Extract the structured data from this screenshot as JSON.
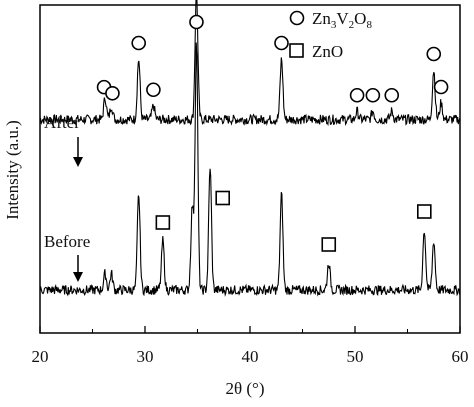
{
  "chart_data": {
    "type": "line",
    "xlabel": "2θ (°)",
    "ylabel": "Intensity (a.u.)",
    "xlim": [
      20,
      60
    ],
    "xticks": [
      20,
      30,
      40,
      50,
      60
    ],
    "grid": false,
    "legend_position": "top-right",
    "legend": [
      {
        "marker": "circle",
        "name": "Zn3V2O8"
      },
      {
        "marker": "square",
        "name": "ZnO"
      }
    ],
    "series": [
      {
        "name": "After",
        "baseline": 0.62,
        "peaks": [
          {
            "x": 26.2,
            "h": 0.08
          },
          {
            "x": 26.8,
            "h": 0.05
          },
          {
            "x": 29.4,
            "h": 0.22
          },
          {
            "x": 30.8,
            "h": 0.05
          },
          {
            "x": 34.9,
            "h": 0.47
          },
          {
            "x": 43.0,
            "h": 0.22
          },
          {
            "x": 50.2,
            "h": 0.03
          },
          {
            "x": 51.7,
            "h": 0.03
          },
          {
            "x": 53.5,
            "h": 0.03
          },
          {
            "x": 57.5,
            "h": 0.18
          },
          {
            "x": 58.2,
            "h": 0.06
          }
        ]
      },
      {
        "name": "Before",
        "baseline": 0.0,
        "peaks": [
          {
            "x": 26.2,
            "h": 0.06
          },
          {
            "x": 26.8,
            "h": 0.06
          },
          {
            "x": 29.4,
            "h": 0.35
          },
          {
            "x": 31.7,
            "h": 0.18
          },
          {
            "x": 34.5,
            "h": 0.3
          },
          {
            "x": 34.9,
            "h": 0.9
          },
          {
            "x": 36.2,
            "h": 0.45
          },
          {
            "x": 43.0,
            "h": 0.35
          },
          {
            "x": 47.5,
            "h": 0.1
          },
          {
            "x": 56.6,
            "h": 0.22
          },
          {
            "x": 57.5,
            "h": 0.18
          }
        ]
      }
    ],
    "markers": {
      "circles": [
        26.1,
        26.9,
        29.4,
        30.8,
        34.9,
        43.0,
        50.2,
        51.7,
        53.5,
        57.5,
        58.2
      ],
      "squares": [
        31.7,
        37.4,
        47.5,
        56.6
      ]
    },
    "annotations": [
      {
        "text": "After",
        "arrow_x": 23.8
      },
      {
        "text": "Before",
        "arrow_x": 23.8
      }
    ]
  }
}
